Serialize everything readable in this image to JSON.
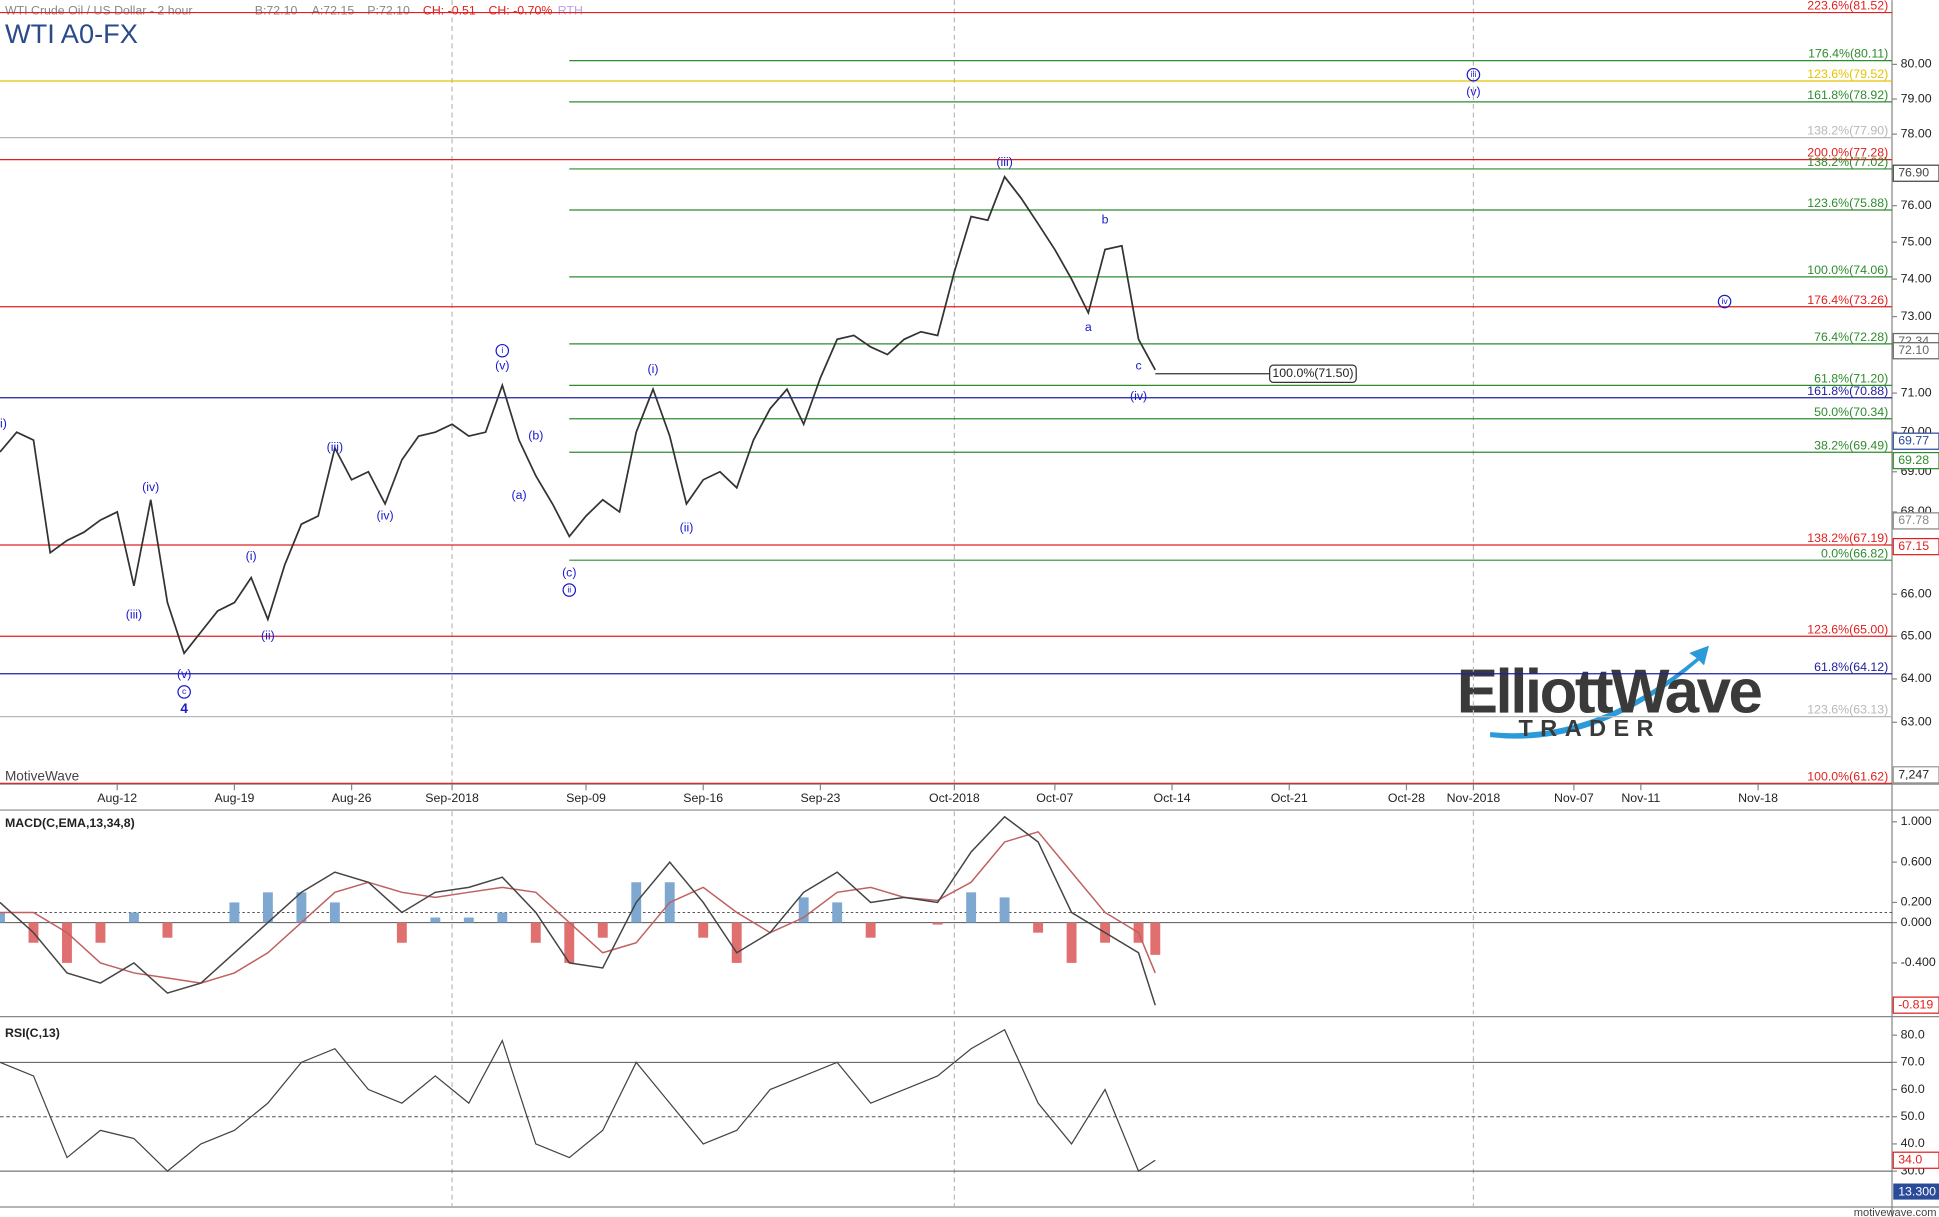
{
  "header": {
    "title": "WTI Crude Oil / US Dollar - 2 hour",
    "quote": [
      "B:72.10",
      "A:72.15",
      "P:72.10"
    ],
    "change": [
      "CH: -0.51",
      "CH: -0.70%"
    ],
    "session": "RTH",
    "symbol": "WTI A0-FX"
  },
  "watermark": "MotiveWave",
  "volume_tag": "7,247",
  "logo": {
    "line1": "ElliottWave",
    "line2": "TRADER"
  },
  "footer": "motivewave.com",
  "chart_data": [
    {
      "type": "line",
      "color": "#333333",
      "log_scale": true,
      "xlim": [
        "2018-08-05",
        "2018-11-26"
      ],
      "ylim": [
        61.63,
        81.89
      ],
      "xticks": [
        {
          "value": "2018-08-12",
          "label": "Aug-12"
        },
        {
          "value": "2018-08-19",
          "label": "Aug-19"
        },
        {
          "value": "2018-08-26",
          "label": "Aug-26"
        },
        {
          "value": "2018-09-01",
          "label": "Sep-2018"
        },
        {
          "value": "2018-09-09",
          "label": "Sep-09"
        },
        {
          "value": "2018-09-16",
          "label": "Sep-16"
        },
        {
          "value": "2018-09-23",
          "label": "Sep-23"
        },
        {
          "value": "2018-10-01",
          "label": "Oct-2018"
        },
        {
          "value": "2018-10-07",
          "label": "Oct-07"
        },
        {
          "value": "2018-10-14",
          "label": "Oct-14"
        },
        {
          "value": "2018-10-21",
          "label": "Oct-21"
        },
        {
          "value": "2018-10-28",
          "label": "Oct-28"
        },
        {
          "value": "2018-11-01",
          "label": "Nov-2018"
        },
        {
          "value": "2018-11-07",
          "label": "Nov-07"
        },
        {
          "value": "2018-11-11",
          "label": "Nov-11"
        },
        {
          "value": "2018-11-18",
          "label": "Nov-18"
        }
      ],
      "yticks": [
        {
          "value": 80,
          "label": "80.00"
        },
        {
          "value": 79,
          "label": "79.00"
        },
        {
          "value": 78,
          "label": "78.00"
        },
        {
          "value": 76,
          "label": "76.00"
        },
        {
          "value": 75,
          "label": "75.00"
        },
        {
          "value": 74,
          "label": "74.00"
        },
        {
          "value": 73,
          "label": "73.00"
        },
        {
          "value": 71,
          "label": "71.00"
        },
        {
          "value": 70,
          "label": "70.00"
        },
        {
          "value": 69,
          "label": "69.00"
        },
        {
          "value": 68,
          "label": "68.00"
        },
        {
          "value": 66,
          "label": "66.00"
        },
        {
          "value": 65,
          "label": "65.00"
        },
        {
          "value": 64,
          "label": "64.00"
        },
        {
          "value": 63,
          "label": "63.00"
        }
      ],
      "x": [
        "2018-08-05",
        "2018-08-06",
        "2018-08-07",
        "2018-08-08",
        "2018-08-09",
        "2018-08-10",
        "2018-08-11",
        "2018-08-12",
        "2018-08-13",
        "2018-08-14",
        "2018-08-15",
        "2018-08-16",
        "2018-08-17",
        "2018-08-18",
        "2018-08-19",
        "2018-08-20",
        "2018-08-21",
        "2018-08-22",
        "2018-08-23",
        "2018-08-24",
        "2018-08-25",
        "2018-08-26",
        "2018-08-27",
        "2018-08-28",
        "2018-08-29",
        "2018-08-30",
        "2018-08-31",
        "2018-09-01",
        "2018-09-02",
        "2018-09-03",
        "2018-09-04",
        "2018-09-05",
        "2018-09-06",
        "2018-09-07",
        "2018-09-08",
        "2018-09-09",
        "2018-09-10",
        "2018-09-11",
        "2018-09-12",
        "2018-09-13",
        "2018-09-14",
        "2018-09-15",
        "2018-09-16",
        "2018-09-17",
        "2018-09-18",
        "2018-09-19",
        "2018-09-20",
        "2018-09-21",
        "2018-09-22",
        "2018-09-23",
        "2018-09-24",
        "2018-09-25",
        "2018-09-26",
        "2018-09-27",
        "2018-09-28",
        "2018-09-29",
        "2018-09-30",
        "2018-10-01",
        "2018-10-02",
        "2018-10-03",
        "2018-10-04",
        "2018-10-05",
        "2018-10-06",
        "2018-10-07",
        "2018-10-08",
        "2018-10-09",
        "2018-10-10",
        "2018-10-11",
        "2018-10-12",
        "2018-10-13"
      ],
      "values": [
        69.5,
        70.0,
        69.8,
        67.0,
        67.3,
        67.5,
        67.8,
        68.0,
        66.2,
        68.3,
        65.8,
        64.6,
        65.1,
        65.6,
        65.8,
        66.4,
        65.4,
        66.7,
        67.7,
        67.9,
        69.6,
        68.8,
        69.0,
        68.2,
        69.3,
        69.9,
        70.0,
        70.2,
        69.9,
        70.0,
        71.2,
        69.8,
        68.9,
        68.2,
        67.4,
        67.9,
        68.3,
        68.0,
        70.0,
        71.1,
        69.9,
        68.2,
        68.8,
        69.0,
        68.6,
        69.8,
        70.6,
        71.1,
        70.2,
        71.4,
        72.4,
        72.5,
        72.2,
        72.0,
        72.4,
        72.6,
        72.5,
        74.2,
        75.7,
        75.6,
        76.8,
        76.2,
        75.5,
        74.8,
        74.0,
        73.1,
        74.8,
        74.9,
        72.4,
        71.6
      ],
      "levels": [
        {
          "label": "223.6%(81.52)",
          "value": 81.52,
          "color": "#e02020"
        },
        {
          "label": "176.4%(80.11)",
          "value": 80.11,
          "color": "#2e8b2e",
          "start": "2018-09-08"
        },
        {
          "label": "123.6%(79.52)",
          "value": 79.52,
          "color": "#e6c200"
        },
        {
          "label": "161.8%(78.92)",
          "value": 78.92,
          "color": "#2e8b2e",
          "start": "2018-09-08"
        },
        {
          "label": "138.2%(77.90)",
          "value": 77.9,
          "color": "#b8b8b8"
        },
        {
          "label": "200.0%(77.28)",
          "value": 77.28,
          "color": "#e02020"
        },
        {
          "label": "138.2%(77.02)",
          "value": 77.02,
          "color": "#2e8b2e",
          "start": "2018-09-08"
        },
        {
          "label": "123.6%(75.88)",
          "value": 75.88,
          "color": "#2e8b2e",
          "start": "2018-09-08"
        },
        {
          "label": "100.0%(74.06)",
          "value": 74.06,
          "color": "#2e8b2e",
          "start": "2018-09-08"
        },
        {
          "label": "176.4%(73.26)",
          "value": 73.26,
          "color": "#e02020"
        },
        {
          "label": "76.4%(72.28)",
          "value": 72.28,
          "color": "#2e8b2e",
          "start": "2018-09-08"
        },
        {
          "label": "61.8%(71.20)",
          "value": 71.2,
          "color": "#2e8b2e",
          "start": "2018-09-08"
        },
        {
          "label": "161.8%(70.88)",
          "value": 70.88,
          "color": "#2020a0"
        },
        {
          "label": "50.0%(70.34)",
          "value": 70.34,
          "color": "#2e8b2e",
          "start": "2018-09-08"
        },
        {
          "label": "38.2%(69.49)",
          "value": 69.49,
          "color": "#2e8b2e",
          "start": "2018-09-08"
        },
        {
          "label": "138.2%(67.19)",
          "value": 67.19,
          "color": "#e02020"
        },
        {
          "label": "0.0%(66.82)",
          "value": 66.82,
          "color": "#2e8b2e",
          "start": "2018-09-08"
        },
        {
          "label": "123.6%(65.00)",
          "value": 65.0,
          "color": "#e02020"
        },
        {
          "label": "61.8%(64.12)",
          "value": 64.12,
          "color": "#2020a0"
        },
        {
          "label": "123.6%(63.13)",
          "value": 63.13,
          "color": "#b8b8b8"
        },
        {
          "label": "100.0%(61.62)",
          "value": 61.62,
          "color": "#e02020"
        }
      ],
      "target": {
        "label": "100.0%(71.50)",
        "value": 71.5,
        "x": [
          "2018-10-13",
          "2018-10-25"
        ]
      },
      "waves": [
        {
          "text": "(ii)",
          "date": "2018-08-05",
          "price": 70.2
        },
        {
          "text": "(iv)",
          "date": "2018-08-14",
          "price": 68.6
        },
        {
          "text": "(iii)",
          "date": "2018-08-13",
          "price": 65.5
        },
        {
          "text": "(v)",
          "date": "2018-08-16",
          "price": 64.1
        },
        {
          "text": "c",
          "date": "2018-08-16",
          "price": 63.7,
          "circled": true
        },
        {
          "text": "4",
          "date": "2018-08-16",
          "price": 63.3,
          "bold": true
        },
        {
          "text": "(i)",
          "date": "2018-08-20",
          "price": 66.9
        },
        {
          "text": "(ii)",
          "date": "2018-08-21",
          "price": 65.0
        },
        {
          "text": "(iii)",
          "date": "2018-08-25",
          "price": 69.6
        },
        {
          "text": "(iv)",
          "date": "2018-08-28",
          "price": 67.9
        },
        {
          "text": "i",
          "date": "2018-09-04",
          "price": 72.1,
          "circled": true
        },
        {
          "text": "(v)",
          "date": "2018-09-04",
          "price": 71.7
        },
        {
          "text": "(b)",
          "date": "2018-09-06",
          "price": 69.9
        },
        {
          "text": "(a)",
          "date": "2018-09-05",
          "price": 68.4
        },
        {
          "text": "(c)",
          "date": "2018-09-08",
          "price": 66.5
        },
        {
          "text": "ii",
          "date": "2018-09-08",
          "price": 66.1,
          "circled": true
        },
        {
          "text": "(i)",
          "date": "2018-09-13",
          "price": 71.6
        },
        {
          "text": "(ii)",
          "date": "2018-09-15",
          "price": 67.6
        },
        {
          "text": "(iii)",
          "date": "2018-10-04",
          "price": 77.2
        },
        {
          "text": "b",
          "date": "2018-10-10",
          "price": 75.6
        },
        {
          "text": "a",
          "date": "2018-10-09",
          "price": 72.7
        },
        {
          "text": "c",
          "date": "2018-10-12",
          "price": 71.7
        },
        {
          "text": "(iv)",
          "date": "2018-10-12",
          "price": 70.9
        },
        {
          "text": "iii",
          "date": "2018-11-01",
          "price": 79.7,
          "circled": true
        },
        {
          "text": "(v)",
          "date": "2018-11-01",
          "price": 79.2
        },
        {
          "text": "iv",
          "date": "2018-11-16",
          "price": 73.4,
          "circled": true
        }
      ],
      "price_tags": [
        {
          "value": 76.9,
          "label": "76.90",
          "color": "#444444"
        },
        {
          "value": 72.34,
          "label": "72.34",
          "color": "#666666"
        },
        {
          "value": 72.1,
          "label": "72.10",
          "color": "#666666"
        },
        {
          "value": 69.77,
          "label": "69.77",
          "color": "#2a4a9a"
        },
        {
          "value": 69.28,
          "label": "69.28",
          "color": "#2e8b2e"
        },
        {
          "value": 67.78,
          "label": "67.78",
          "color": "#888888"
        },
        {
          "value": 67.15,
          "label": "67.15",
          "color": "#e02020"
        }
      ]
    },
    {
      "type": "macd",
      "title": "MACD(C,EMA,13,34,8)",
      "xlim": [
        "2018-08-05",
        "2018-11-26"
      ],
      "ylim": [
        -0.908,
        1.104
      ],
      "yticks": [
        {
          "value": 1,
          "label": "1.000"
        },
        {
          "value": 0.6,
          "label": "0.600"
        },
        {
          "value": 0.2,
          "label": "0.200"
        },
        {
          "value": 0,
          "label": "0.000"
        },
        {
          "value": -0.4,
          "label": "-0.400"
        }
      ],
      "x": [
        "2018-08-05",
        "2018-08-07",
        "2018-08-09",
        "2018-08-11",
        "2018-08-13",
        "2018-08-15",
        "2018-08-17",
        "2018-08-19",
        "2018-08-21",
        "2018-08-23",
        "2018-08-25",
        "2018-08-27",
        "2018-08-29",
        "2018-08-31",
        "2018-09-02",
        "2018-09-04",
        "2018-09-06",
        "2018-09-08",
        "2018-09-10",
        "2018-09-12",
        "2018-09-14",
        "2018-09-16",
        "2018-09-18",
        "2018-09-20",
        "2018-09-22",
        "2018-09-24",
        "2018-09-26",
        "2018-09-28",
        "2018-09-30",
        "2018-10-02",
        "2018-10-04",
        "2018-10-06",
        "2018-10-08",
        "2018-10-10",
        "2018-10-12",
        "2018-10-13"
      ],
      "macd": {
        "color": "#444444",
        "values": [
          0.2,
          -0.1,
          -0.5,
          -0.6,
          -0.4,
          -0.7,
          -0.6,
          -0.3,
          0.0,
          0.3,
          0.5,
          0.4,
          0.1,
          0.3,
          0.35,
          0.45,
          0.1,
          -0.4,
          -0.45,
          0.2,
          0.6,
          0.2,
          -0.3,
          -0.1,
          0.3,
          0.5,
          0.2,
          0.25,
          0.2,
          0.7,
          1.05,
          0.8,
          0.1,
          -0.1,
          -0.3,
          -0.82
        ]
      },
      "signal": {
        "color": "#c06060",
        "values": [
          0.1,
          0.1,
          -0.1,
          -0.4,
          -0.5,
          -0.55,
          -0.6,
          -0.5,
          -0.3,
          0.0,
          0.3,
          0.4,
          0.3,
          0.25,
          0.3,
          0.35,
          0.3,
          0.0,
          -0.3,
          -0.2,
          0.2,
          0.35,
          0.1,
          -0.1,
          0.05,
          0.3,
          0.35,
          0.25,
          0.22,
          0.4,
          0.8,
          0.9,
          0.5,
          0.1,
          -0.1,
          -0.5
        ]
      },
      "histogram": {
        "colors": [
          "#7fa8d0",
          "#e07070"
        ],
        "values": [
          0.1,
          -0.2,
          -0.4,
          -0.2,
          0.1,
          -0.15,
          0,
          0.2,
          0.3,
          0.3,
          0.2,
          0,
          -0.2,
          0.05,
          0.05,
          0.1,
          -0.2,
          -0.4,
          -0.15,
          0.4,
          0.4,
          -0.15,
          -0.4,
          0,
          0.25,
          0.2,
          -0.15,
          0,
          -0.02,
          0.3,
          0.25,
          -0.1,
          -0.4,
          -0.2,
          -0.2,
          -0.32
        ]
      },
      "guides": [
        0.1,
        0
      ],
      "price_tags": [
        {
          "value": -0.819,
          "label": "-0.819",
          "color": "#e02020"
        }
      ]
    },
    {
      "type": "rsi",
      "title": "RSI(C,13)",
      "xlim": [
        "2018-08-05",
        "2018-11-26"
      ],
      "ylim": [
        16.8,
        85
      ],
      "yticks": [
        {
          "value": 80,
          "label": "80.0"
        },
        {
          "value": 70,
          "label": "70.0"
        },
        {
          "value": 60,
          "label": "60.0"
        },
        {
          "value": 50,
          "label": "50.0"
        },
        {
          "value": 40,
          "label": "40.0"
        },
        {
          "value": 30,
          "label": "30.0"
        }
      ],
      "x": [
        "2018-08-05",
        "2018-08-07",
        "2018-08-09",
        "2018-08-11",
        "2018-08-13",
        "2018-08-15",
        "2018-08-17",
        "2018-08-19",
        "2018-08-21",
        "2018-08-23",
        "2018-08-25",
        "2018-08-27",
        "2018-08-29",
        "2018-08-31",
        "2018-09-02",
        "2018-09-04",
        "2018-09-06",
        "2018-09-08",
        "2018-09-10",
        "2018-09-12",
        "2018-09-14",
        "2018-09-16",
        "2018-09-18",
        "2018-09-20",
        "2018-09-22",
        "2018-09-24",
        "2018-09-26",
        "2018-09-28",
        "2018-09-30",
        "2018-10-02",
        "2018-10-04",
        "2018-10-06",
        "2018-10-08",
        "2018-10-10",
        "2018-10-12",
        "2018-10-13"
      ],
      "values": [
        70,
        65,
        35,
        45,
        42,
        30,
        40,
        45,
        55,
        70,
        75,
        60,
        55,
        65,
        55,
        78,
        40,
        35,
        45,
        70,
        55,
        40,
        45,
        60,
        65,
        70,
        55,
        60,
        65,
        75,
        82,
        55,
        40,
        60,
        30,
        34
      ],
      "color": "#444444",
      "guides": [
        70,
        50,
        30
      ],
      "price_tags": [
        {
          "value": 34,
          "label": "34.0",
          "color": "#e02020"
        }
      ],
      "extra_tag": "13.300"
    }
  ]
}
